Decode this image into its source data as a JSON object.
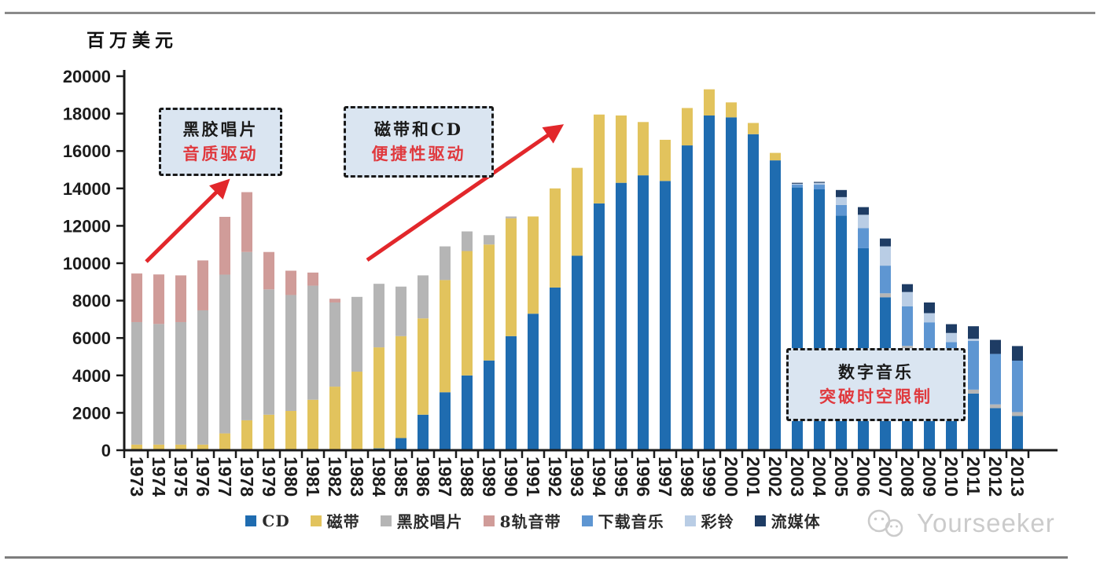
{
  "page": {
    "unit_label": "百万美元",
    "watermark": "Yourseeker"
  },
  "annotations": [
    {
      "title": "黑胶唱片",
      "subtitle": "音质驱动"
    },
    {
      "title": "磁带和CD",
      "subtitle": "便捷性驱动"
    },
    {
      "title": "数字音乐",
      "subtitle": "突破时空限制"
    }
  ],
  "annotation_style": {
    "fill": "#DAE5F1",
    "border": "#1a1a1a",
    "title_color": "#1a1a1a",
    "subtitle_color": "#E0393E",
    "arrow_color": "#E2272B"
  },
  "chart_data": {
    "type": "bar",
    "stacked": true,
    "title": "",
    "unit_label": "百万美元",
    "grid": false,
    "legend_position": "bottom",
    "ylim": [
      0,
      20000
    ],
    "yticks": [
      0,
      2000,
      4000,
      6000,
      8000,
      10000,
      12000,
      14000,
      16000,
      18000,
      20000
    ],
    "categories": [
      1973,
      1974,
      1975,
      1976,
      1977,
      1978,
      1979,
      1980,
      1981,
      1982,
      1983,
      1984,
      1985,
      1986,
      1987,
      1988,
      1989,
      1990,
      1991,
      1992,
      1993,
      1994,
      1995,
      1996,
      1997,
      1998,
      1999,
      2000,
      2001,
      2002,
      2003,
      2004,
      2005,
      2006,
      2007,
      2008,
      2009,
      2010,
      2011,
      2012,
      2013
    ],
    "series": [
      {
        "name": "CD",
        "color": "#1F6CB0",
        "values": [
          0,
          0,
          0,
          0,
          0,
          0,
          0,
          0,
          0,
          0,
          0,
          100,
          650,
          1900,
          3100,
          4000,
          4800,
          6100,
          7300,
          8700,
          10400,
          13200,
          14300,
          14700,
          14400,
          16300,
          17900,
          17800,
          16900,
          15500,
          14050,
          13950,
          12550,
          10800,
          8180,
          5430,
          4450,
          3700,
          3030,
          2250,
          1830
        ]
      },
      {
        "name": "磁带",
        "color": "#E2C35D",
        "values": [
          300,
          300,
          300,
          300,
          900,
          1600,
          1900,
          2100,
          2700,
          3400,
          4200,
          5400,
          5450,
          5150,
          6000,
          6650,
          6200,
          6300,
          5200,
          5300,
          4700,
          4750,
          3600,
          2850,
          2200,
          2000,
          1400,
          800,
          600,
          400,
          0,
          0,
          0,
          0,
          0,
          0,
          0,
          0,
          0,
          0,
          0
        ]
      },
      {
        "name": "黑胶唱片",
        "color": "#B5B5B5",
        "values": [
          6550,
          6450,
          6550,
          7180,
          8490,
          9000,
          6700,
          6200,
          6100,
          4500,
          4000,
          3400,
          2650,
          2300,
          1800,
          1050,
          500,
          100,
          0,
          0,
          0,
          0,
          0,
          0,
          0,
          0,
          0,
          0,
          0,
          0,
          0,
          0,
          0,
          0,
          210,
          150,
          150,
          150,
          210,
          200,
          210
        ]
      },
      {
        "name": "8轨音带",
        "color": "#D09C99",
        "values": [
          2600,
          2650,
          2500,
          2670,
          3090,
          3200,
          2000,
          1300,
          700,
          200,
          0,
          0,
          0,
          0,
          0,
          0,
          0,
          0,
          0,
          0,
          0,
          0,
          0,
          0,
          0,
          0,
          0,
          0,
          0,
          0,
          0,
          0,
          0,
          0,
          0,
          0,
          0,
          0,
          0,
          0,
          0
        ]
      },
      {
        "name": "下载音乐",
        "color": "#5E96D2",
        "values": [
          0,
          0,
          0,
          0,
          0,
          0,
          0,
          0,
          0,
          0,
          0,
          0,
          0,
          0,
          0,
          0,
          0,
          0,
          0,
          0,
          0,
          0,
          0,
          0,
          0,
          0,
          0,
          0,
          0,
          0,
          150,
          250,
          560,
          1080,
          1480,
          2120,
          2240,
          1930,
          2600,
          2700,
          2750
        ]
      },
      {
        "name": "彩铃",
        "color": "#B9CDE5",
        "values": [
          0,
          0,
          0,
          0,
          0,
          0,
          0,
          0,
          0,
          0,
          0,
          0,
          0,
          0,
          0,
          0,
          0,
          0,
          0,
          0,
          0,
          0,
          0,
          0,
          0,
          0,
          0,
          0,
          0,
          0,
          50,
          100,
          425,
          710,
          1030,
          760,
          490,
          490,
          120,
          0,
          0
        ]
      },
      {
        "name": "流媒体",
        "color": "#1E3C64",
        "values": [
          0,
          0,
          0,
          0,
          0,
          0,
          0,
          0,
          0,
          0,
          0,
          0,
          0,
          0,
          0,
          0,
          0,
          0,
          0,
          0,
          0,
          0,
          0,
          0,
          0,
          0,
          0,
          0,
          0,
          0,
          50,
          50,
          380,
          410,
          420,
          420,
          570,
          470,
          670,
          750,
          780
        ]
      }
    ]
  }
}
